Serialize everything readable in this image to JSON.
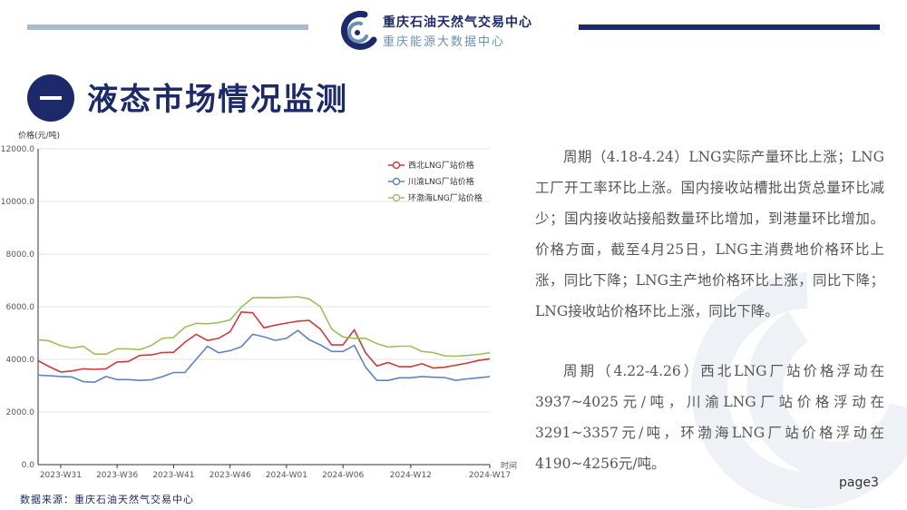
{
  "header": {
    "brand_line1": "重庆石油天然气交易中心",
    "brand_line2": "重庆能源大数据中心"
  },
  "section": {
    "title": "液态市场情况监测"
  },
  "chart_data": {
    "type": "line",
    "ylabel": "价格(元/吨)",
    "xlabel": "时间",
    "ylim": [
      0,
      12000
    ],
    "yticks": [
      "12000.0",
      "10000.0",
      "8000.0",
      "6000.0",
      "4000.0",
      "2000.0",
      "0.0"
    ],
    "xticks": [
      "2023-W31",
      "2023-W36",
      "2023-W41",
      "2023-W46",
      "2024-W01",
      "2024-W06",
      "2024-W12",
      "2024-W17"
    ],
    "x_count": 41,
    "legend_position": "top-right",
    "grid": "horizontal",
    "series": [
      {
        "name": "西北LNG厂站价格",
        "color": "#d03a3a",
        "values": [
          3950,
          3720,
          3520,
          3560,
          3640,
          3620,
          3640,
          3900,
          3920,
          4150,
          4170,
          4260,
          4270,
          4650,
          4950,
          4720,
          4800,
          5050,
          5800,
          5770,
          5200,
          5300,
          5380,
          5450,
          5480,
          5150,
          4550,
          4550,
          5120,
          4250,
          3750,
          3880,
          3720,
          3720,
          3830,
          3670,
          3700,
          3780,
          3860,
          3960,
          4020
        ]
      },
      {
        "name": "川渝LNG厂站价格",
        "color": "#5b83c2",
        "values": [
          3400,
          3380,
          3350,
          3330,
          3150,
          3130,
          3350,
          3230,
          3230,
          3200,
          3220,
          3340,
          3500,
          3500,
          4000,
          4500,
          4250,
          4330,
          4480,
          4950,
          4860,
          4720,
          4800,
          5100,
          4750,
          4550,
          4300,
          4300,
          4530,
          3700,
          3200,
          3200,
          3300,
          3300,
          3350,
          3320,
          3310,
          3200,
          3260,
          3300,
          3340
        ]
      },
      {
        "name": "环渤海LNG厂站价格",
        "color": "#9fbf5e",
        "values": [
          4750,
          4700,
          4520,
          4430,
          4500,
          4200,
          4200,
          4400,
          4400,
          4370,
          4520,
          4800,
          4830,
          5220,
          5370,
          5350,
          5400,
          5500,
          5980,
          6340,
          6350,
          6340,
          6360,
          6380,
          6300,
          6000,
          5150,
          4850,
          4800,
          4800,
          4600,
          4470,
          4500,
          4500,
          4300,
          4260,
          4130,
          4120,
          4150,
          4190,
          4250
        ]
      }
    ]
  },
  "text": {
    "paragraph1": "周期（4.18-4.24）LNG实际产量环比上涨；LNG工厂开工率环比上涨。国内接收站槽批出货总量环比减少；国内接收站接船数量环比增加，到港量环比增加。价格方面，截至4月25日，LNG主消费地价格环比上涨，同比下降；LNG主产地价格环比上涨，同比下降；LNG接收站价格环比上涨，同比下降。",
    "paragraph2": "周期（4.22-4.26）西北LNG厂站价格浮动在3937~4025元/吨，川渝LNG厂站价格浮动在3291~3357元/吨，环渤海LNG厂站价格浮动在4190~4256元/吨。"
  },
  "footer": {
    "source": "数据来源：重庆石油天然气交易中心",
    "page": "page3"
  },
  "colors": {
    "navy": "#1c2a6b",
    "light_bar": "#a9bccb"
  },
  "icons": [
    "company-logo-icon"
  ]
}
